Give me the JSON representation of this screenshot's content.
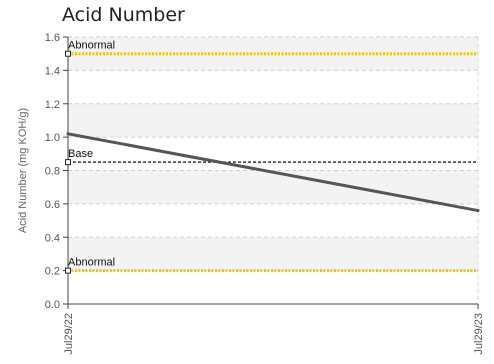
{
  "chart_data": {
    "type": "line",
    "title": "Acid Number",
    "ylabel": "Acid Number (mg KOH/g)",
    "xlabel": "",
    "ylim": [
      0.0,
      1.6
    ],
    "y_ticks": [
      "0.0",
      "0.2",
      "0.4",
      "0.6",
      "0.8",
      "1.0",
      "1.2",
      "1.4",
      "1.6"
    ],
    "x_tick_labels": [
      "Jul29/22",
      "Jul29/23"
    ],
    "grid": true,
    "series": [
      {
        "values": [
          1.02,
          0.56
        ],
        "color": "#555555"
      }
    ],
    "reference_lines": [
      {
        "label": "Abnormal",
        "value": 1.5,
        "color": "#f5c400",
        "style": "dotted"
      },
      {
        "label": "Base",
        "value": 0.85,
        "color": "#333333",
        "style": "dashed"
      },
      {
        "label": "Abnormal",
        "value": 0.2,
        "color": "#f5c400",
        "style": "dotted"
      }
    ]
  }
}
